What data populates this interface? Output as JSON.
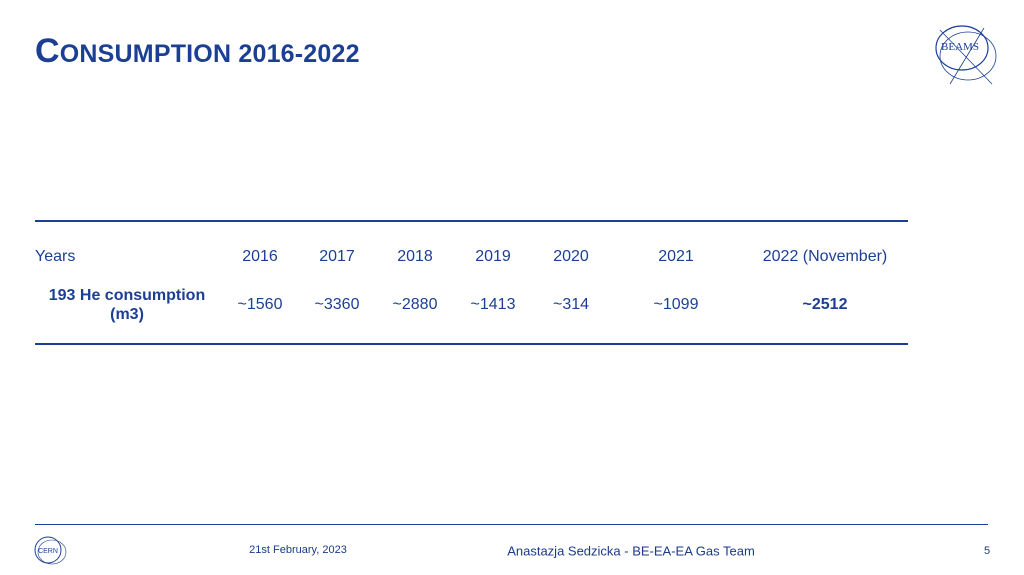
{
  "header": {
    "title": "CONSUMPTION 2016-2022",
    "logo": "BEAMS"
  },
  "table": {
    "header": [
      "Years",
      "2016",
      "2017",
      "2018",
      "2019",
      "2020",
      "2021",
      "2022 (November)"
    ],
    "rows": [
      [
        "193 He consumption (m3)",
        "~1560",
        "~3360",
        "~2880",
        "~1413",
        "~314",
        "~1099",
        "~2512"
      ]
    ]
  },
  "footer": {
    "logo": "CERN",
    "date": "21st February, 2023",
    "author": "Anastazja Sedzicka -  BE-EA-EA Gas Team",
    "page": "5"
  }
}
